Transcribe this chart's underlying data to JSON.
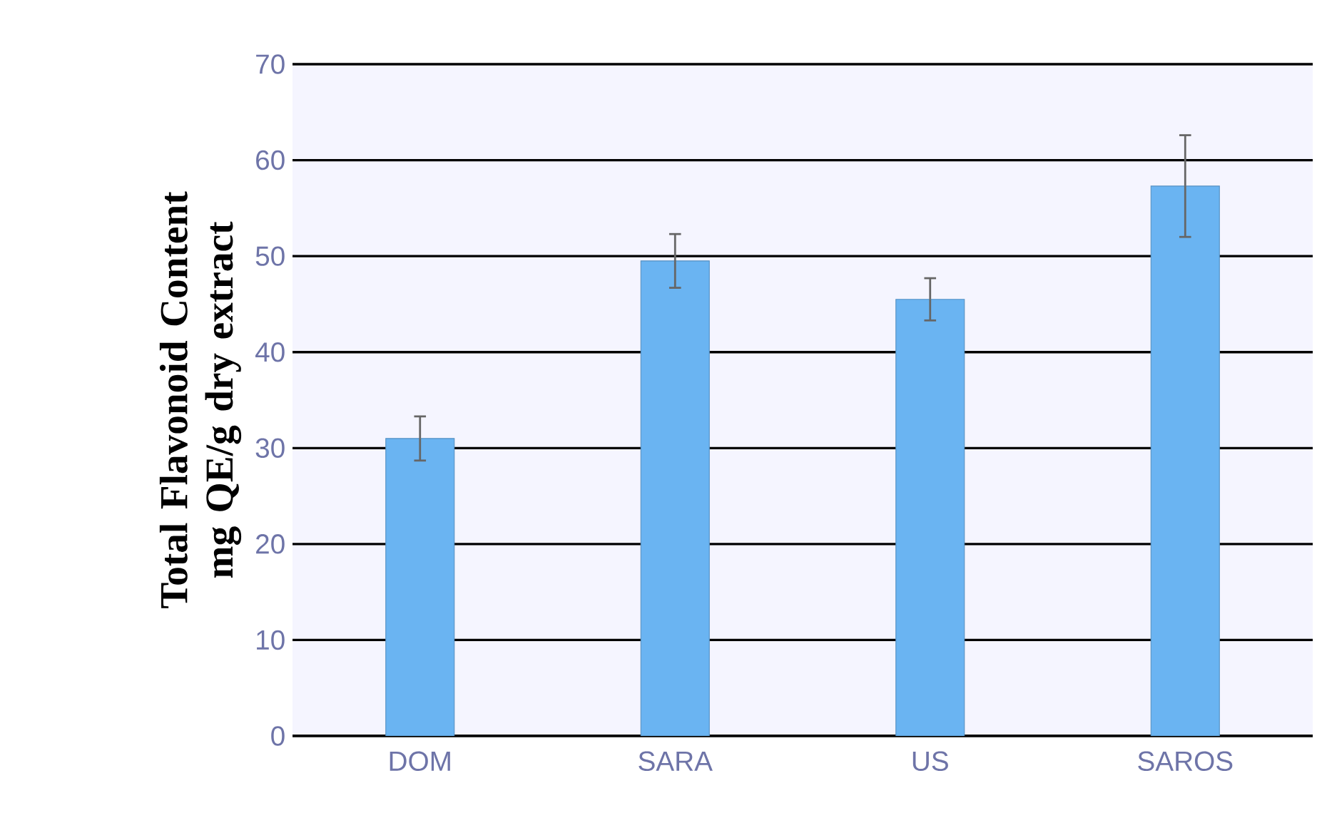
{
  "chart_data": {
    "type": "bar",
    "ylabel": "Total Flavonoid Content mg QE/g dry extract",
    "categories": [
      "DOM",
      "SARA",
      "US",
      "SAROS"
    ],
    "values": [
      31.0,
      49.5,
      45.5,
      57.3
    ],
    "errors": [
      2.3,
      2.8,
      2.2,
      5.3
    ],
    "color": "#6ab4f2",
    "ylim": [
      0,
      70
    ],
    "yticks": [
      0,
      10,
      20,
      30,
      40,
      50,
      60,
      70
    ],
    "grid": "y"
  }
}
